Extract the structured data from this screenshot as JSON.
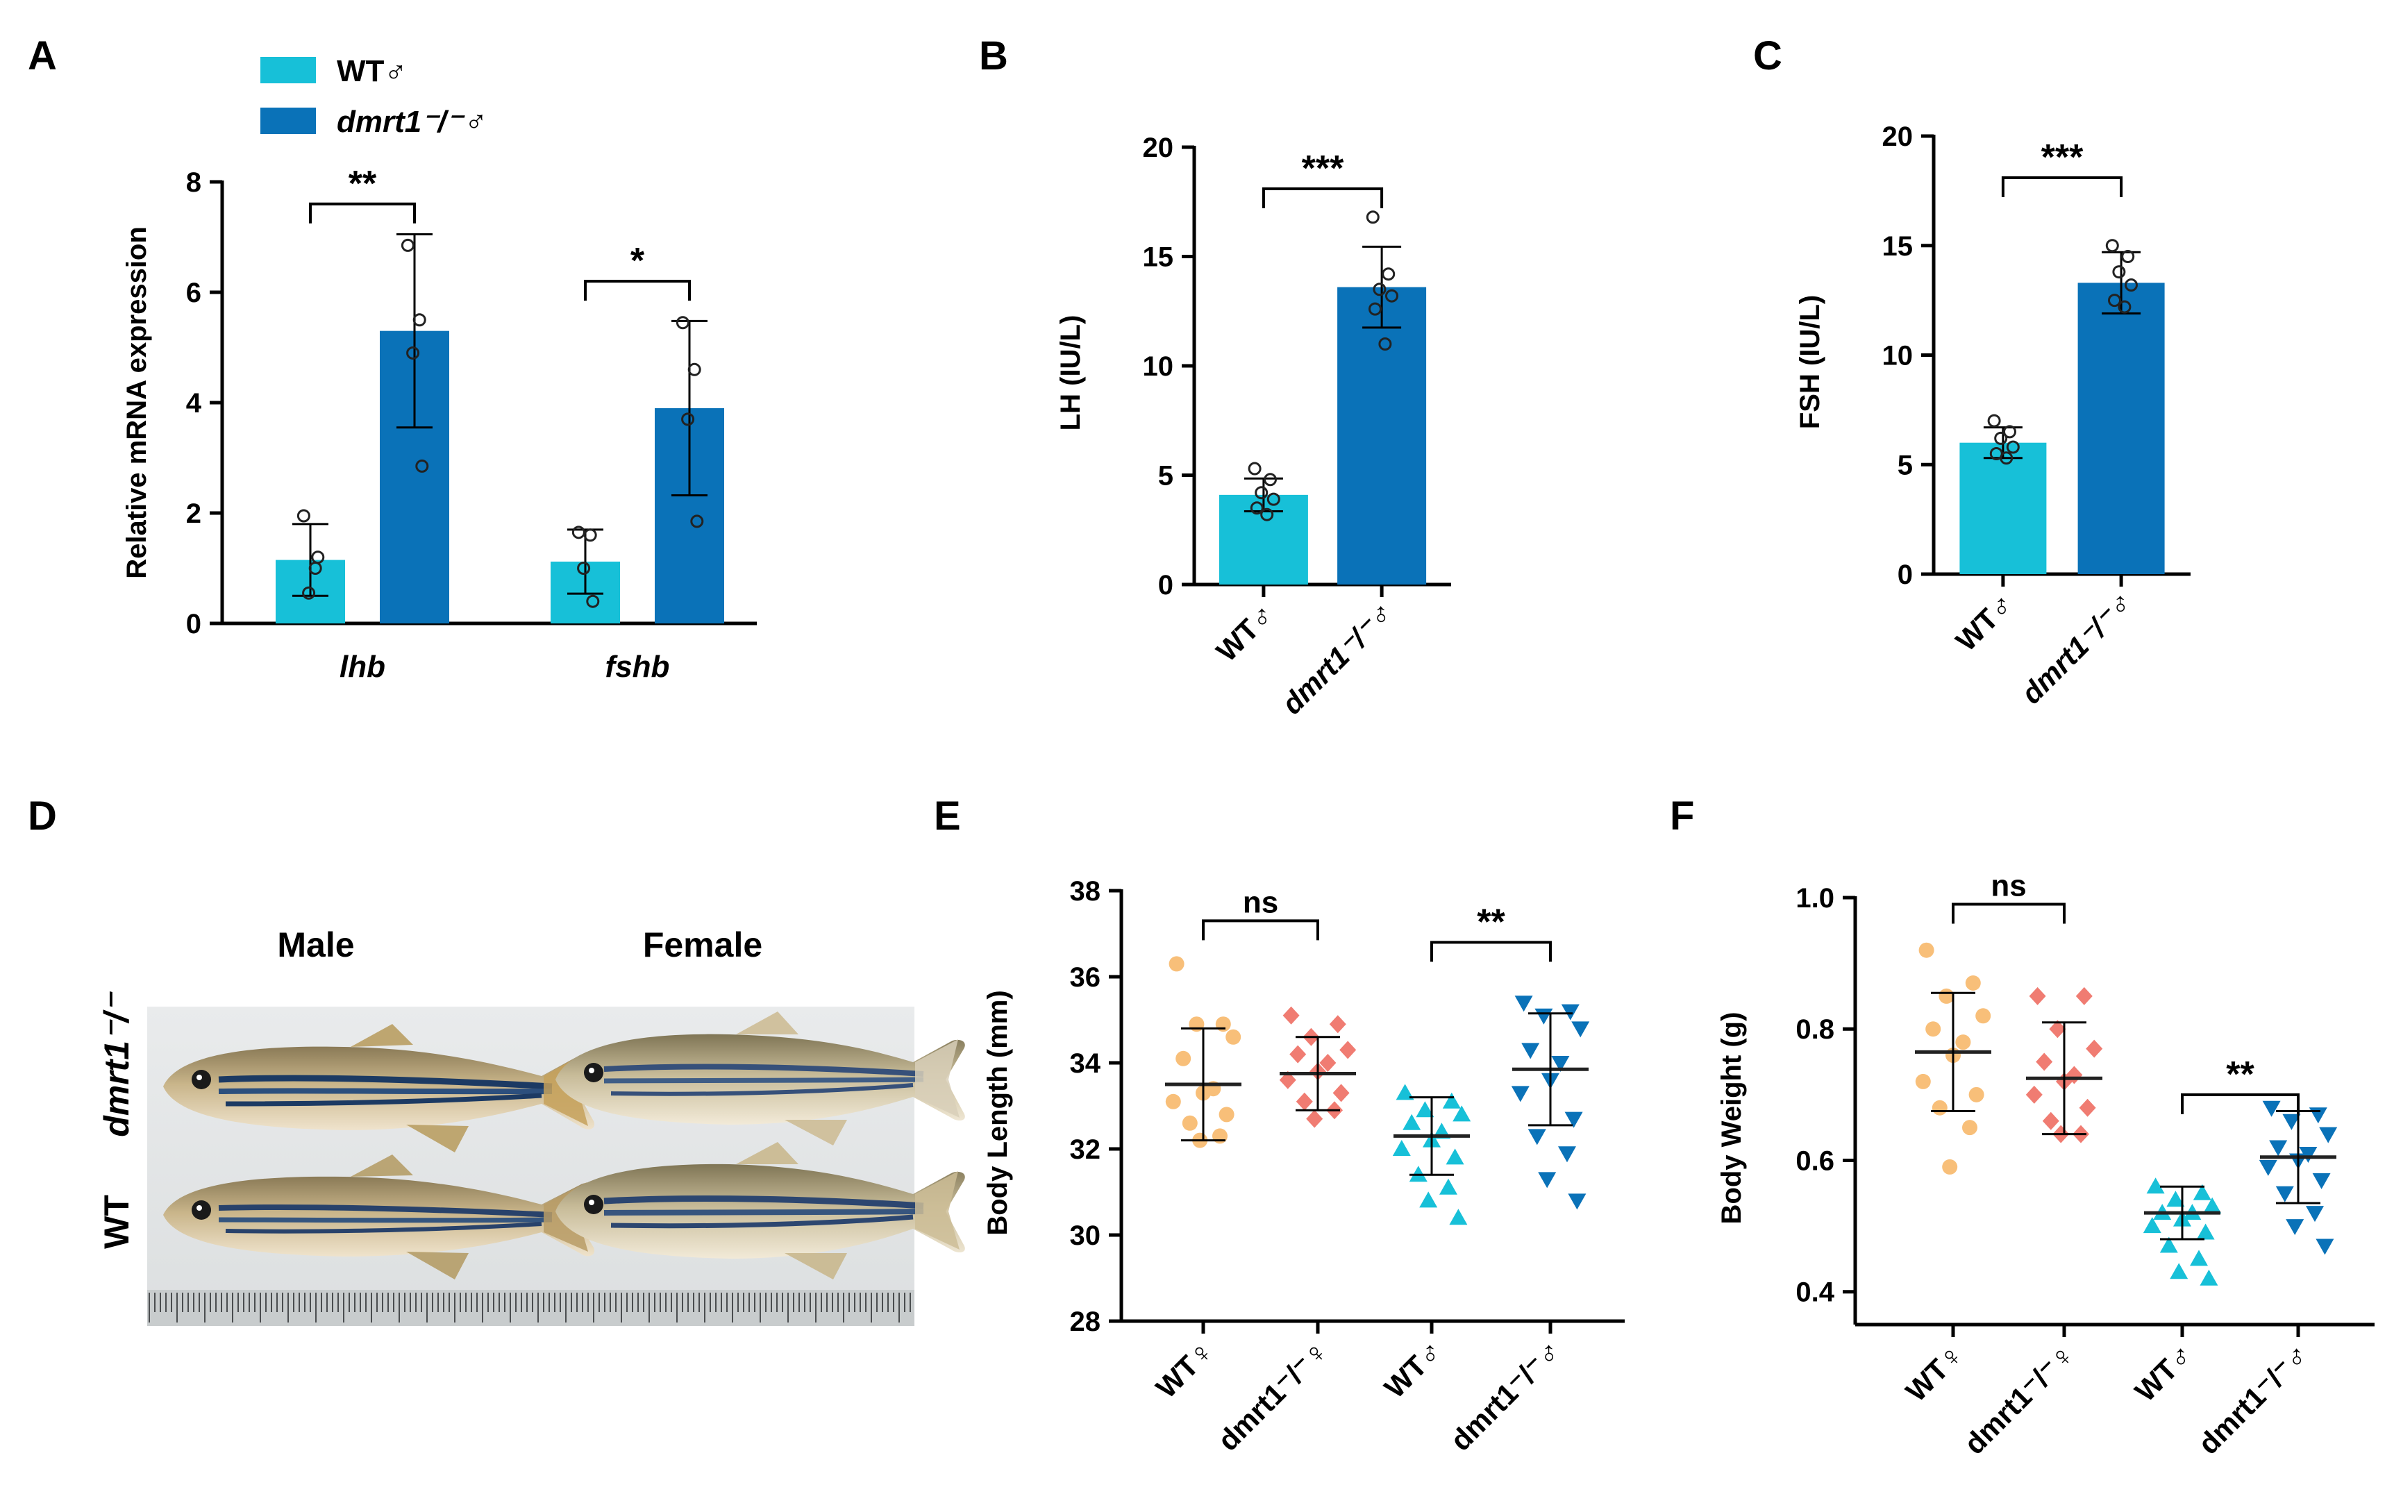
{
  "colors": {
    "wt_male": "#17c0d8",
    "mut_male": "#0a72b8",
    "wt_female": "#f8bf79",
    "mut_female": "#f07c72"
  },
  "panel_a": {
    "letter": "A",
    "legend": [
      {
        "label": "WT♂",
        "color_key": "wt_male"
      },
      {
        "label": "dmrt1⁻/⁻♂",
        "color_key": "mut_male"
      }
    ]
  },
  "panel_d": {
    "letter": "D",
    "col_labels": [
      "Male",
      "Female"
    ],
    "row_labels": [
      "dmrt1⁻/⁻",
      "WT"
    ]
  },
  "chart_data": [
    {
      "id": "A",
      "type": "bar",
      "title": "",
      "ylabel": "Relative mRNA expression",
      "ylim": [
        0,
        8
      ],
      "yticks": [
        "0",
        "2",
        "4",
        "6",
        "8"
      ],
      "categories": [
        "lhb",
        "fshb"
      ],
      "series": [
        {
          "name": "WT♂",
          "color_key": "wt_male",
          "values": [
            1.15,
            1.12
          ],
          "err": [
            0.65,
            0.58
          ],
          "points": [
            [
              1.95,
              1.0,
              0.55,
              1.2
            ],
            [
              1.65,
              1.6,
              1.0,
              0.4
            ]
          ]
        },
        {
          "name": "dmrt1⁻/⁻♂",
          "color_key": "mut_male",
          "values": [
            5.3,
            3.9
          ],
          "err": [
            1.75,
            1.58
          ],
          "points": [
            [
              6.85,
              5.5,
              4.9,
              2.85
            ],
            [
              5.45,
              4.6,
              3.7,
              1.85
            ]
          ]
        }
      ],
      "significance": [
        {
          "group": 0,
          "label": "**"
        },
        {
          "group": 1,
          "label": "*"
        }
      ]
    },
    {
      "id": "B",
      "type": "bar",
      "ylabel": "LH (IU/L)",
      "ylim": [
        0,
        20
      ],
      "yticks": [
        "0",
        "5",
        "10",
        "15",
        "20"
      ],
      "categories": [
        "WT♂",
        "dmrt1⁻/⁻♂"
      ],
      "color_keys": [
        "wt_male",
        "mut_male"
      ],
      "values": [
        4.1,
        13.6
      ],
      "err": [
        0.75,
        1.85
      ],
      "points": [
        [
          5.3,
          4.8,
          4.2,
          3.9,
          3.5,
          3.2
        ],
        [
          16.8,
          14.2,
          13.5,
          13.2,
          12.6,
          11.0
        ]
      ],
      "significance": [
        {
          "pair": [
            0,
            1
          ],
          "label": "***"
        }
      ]
    },
    {
      "id": "C",
      "type": "bar",
      "ylabel": "FSH (IU/L)",
      "ylim": [
        0,
        20
      ],
      "yticks": [
        "0",
        "5",
        "10",
        "15",
        "20"
      ],
      "categories": [
        "WT♂",
        "dmrt1⁻/⁻♂"
      ],
      "color_keys": [
        "wt_male",
        "mut_male"
      ],
      "values": [
        6.0,
        13.3
      ],
      "err": [
        0.7,
        1.4
      ],
      "points": [
        [
          7.0,
          6.5,
          6.2,
          5.8,
          5.5,
          5.3
        ],
        [
          15.0,
          14.5,
          13.8,
          13.2,
          12.5,
          12.2
        ]
      ],
      "significance": [
        {
          "pair": [
            0,
            1
          ],
          "label": "***"
        }
      ]
    },
    {
      "id": "E",
      "type": "scatter",
      "ylabel": "Body Length (mm)",
      "ylim": [
        28,
        38
      ],
      "yticks": [
        "28",
        "30",
        "32",
        "34",
        "36",
        "38"
      ],
      "categories": [
        "WT♀",
        "dmrt1⁻/⁻♀",
        "WT♂",
        "dmrt1⁻/⁻♂"
      ],
      "color_keys": [
        "wt_female",
        "mut_female",
        "wt_male",
        "mut_male"
      ],
      "markers": [
        "circle",
        "diamond",
        "triangle-up",
        "triangle-down"
      ],
      "means": [
        33.5,
        33.75,
        32.3,
        33.85
      ],
      "err": [
        1.3,
        0.85,
        0.9,
        1.3
      ],
      "points": [
        [
          36.3,
          34.9,
          34.9,
          34.6,
          34.1,
          33.4,
          33.3,
          33.1,
          32.8,
          32.6,
          32.3,
          32.2
        ],
        [
          35.1,
          34.9,
          34.6,
          34.3,
          34.2,
          34.0,
          33.8,
          33.6,
          33.3,
          33.1,
          32.9,
          32.7
        ],
        [
          33.3,
          33.1,
          32.9,
          32.8,
          32.6,
          32.4,
          32.2,
          32.0,
          31.8,
          31.4,
          31.1,
          30.8,
          30.4
        ],
        [
          35.4,
          35.2,
          35.1,
          34.8,
          34.3,
          34.0,
          33.6,
          33.3,
          32.7,
          32.3,
          31.9,
          31.3,
          30.8
        ]
      ],
      "significance": [
        {
          "pair": [
            0,
            1
          ],
          "label": "ns"
        },
        {
          "pair": [
            2,
            3
          ],
          "label": "**"
        }
      ]
    },
    {
      "id": "F",
      "type": "scatter",
      "ylabel": "Body Weight (g)",
      "ylim": [
        0.35,
        1.0
      ],
      "yticks": [
        "0.4",
        "0.6",
        "0.8",
        "1.0"
      ],
      "ytick_values": [
        0.4,
        0.6,
        0.8,
        1.0
      ],
      "categories": [
        "WT♀",
        "dmrt1⁻/⁻♀",
        "WT♂",
        "dmrt1⁻/⁻♂"
      ],
      "color_keys": [
        "wt_female",
        "mut_female",
        "wt_male",
        "mut_male"
      ],
      "markers": [
        "circle",
        "diamond",
        "triangle-up",
        "triangle-down"
      ],
      "means": [
        0.765,
        0.725,
        0.52,
        0.605
      ],
      "err": [
        0.09,
        0.085,
        0.04,
        0.07
      ],
      "points": [
        [
          0.92,
          0.87,
          0.85,
          0.82,
          0.8,
          0.78,
          0.76,
          0.72,
          0.7,
          0.68,
          0.65,
          0.59
        ],
        [
          0.85,
          0.85,
          0.8,
          0.77,
          0.75,
          0.73,
          0.72,
          0.7,
          0.68,
          0.66,
          0.64,
          0.64
        ],
        [
          0.56,
          0.55,
          0.54,
          0.53,
          0.52,
          0.52,
          0.51,
          0.5,
          0.49,
          0.47,
          0.45,
          0.43,
          0.42
        ],
        [
          0.68,
          0.67,
          0.66,
          0.64,
          0.62,
          0.61,
          0.6,
          0.59,
          0.57,
          0.55,
          0.52,
          0.5,
          0.47
        ]
      ],
      "significance": [
        {
          "pair": [
            0,
            1
          ],
          "label": "ns"
        },
        {
          "pair": [
            2,
            3
          ],
          "label": "**"
        }
      ]
    }
  ]
}
